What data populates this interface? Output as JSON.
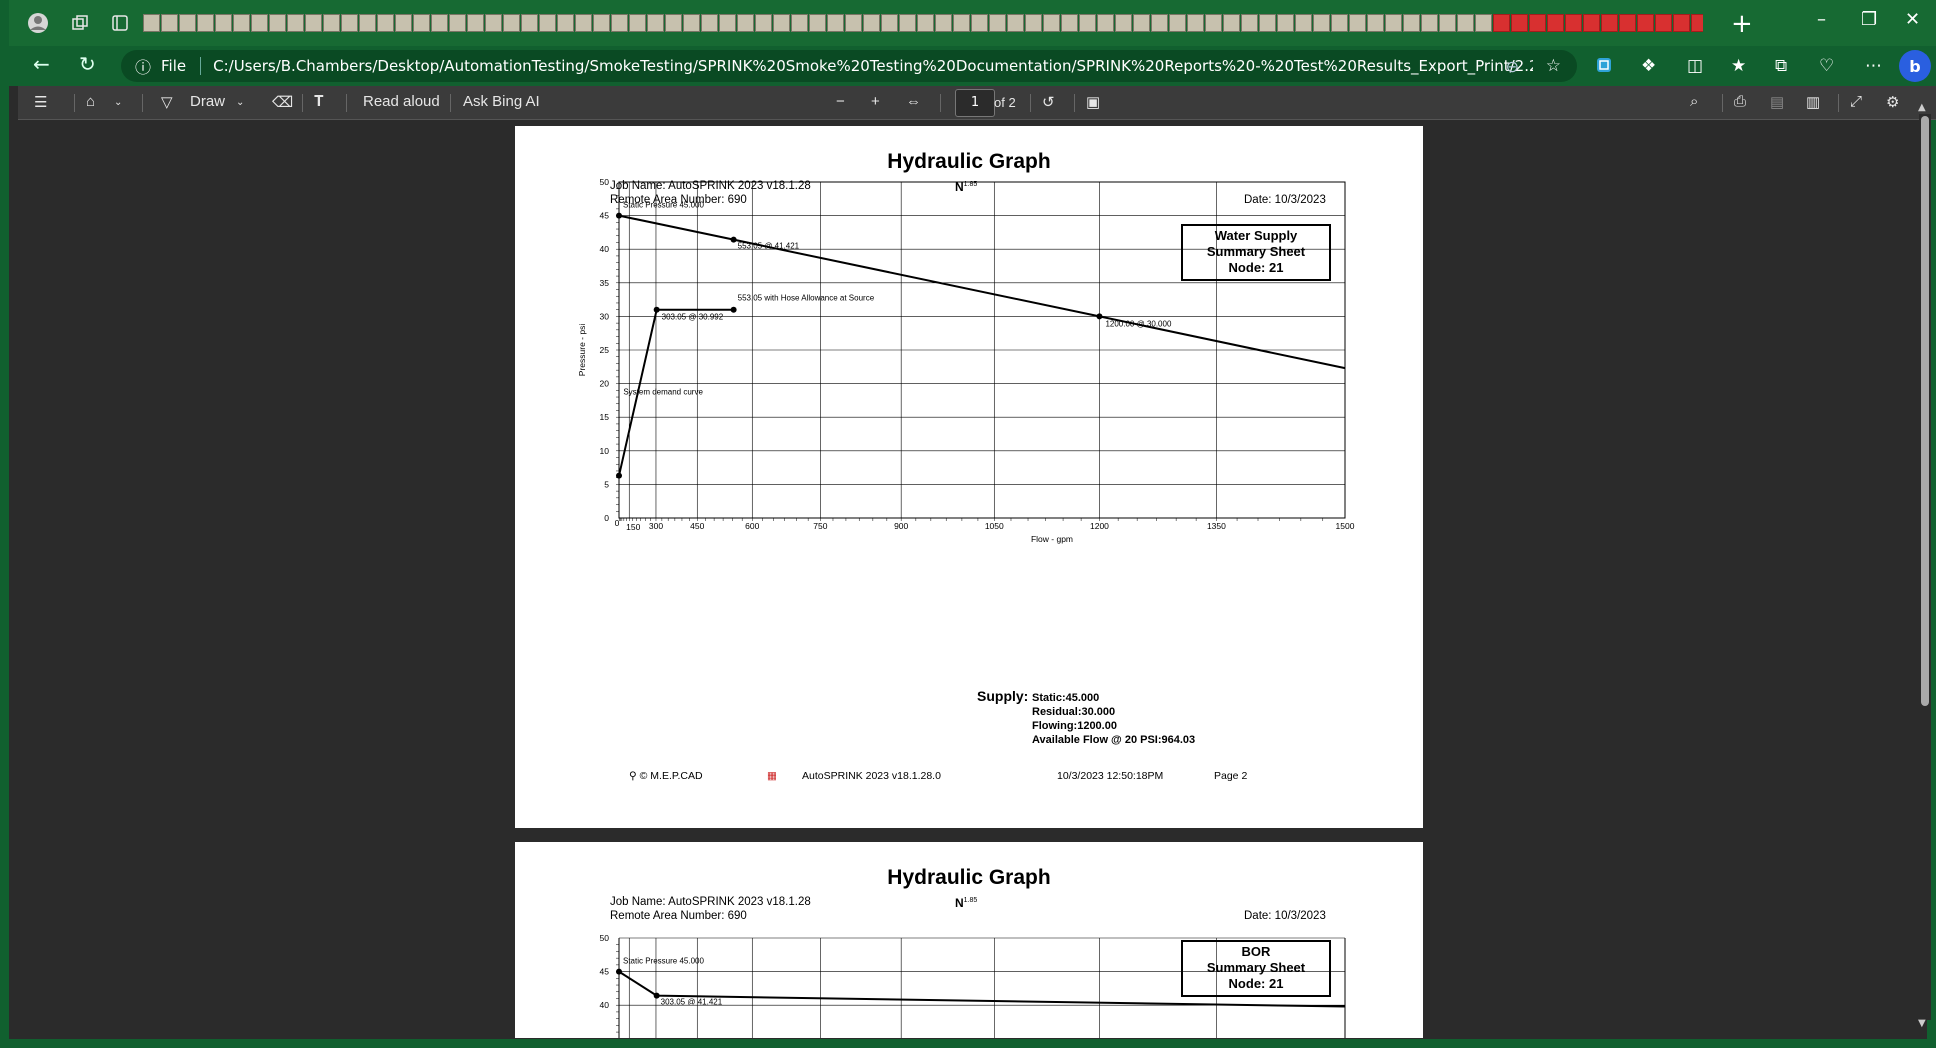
{
  "browser": {
    "address_file_label": "File",
    "url": "C:/Users/B.Chambers/Desktop/AutomationTesting/SmokeTesting/SPRINK%20Smoke%20Testing%20Documentation/SPRINK%20Reports%20-%20Test%20Results_Export_Print/2.2a%20NFPA%20-%20Print%20...",
    "tab_count_visual": 90,
    "pdf_tab_count_visual": 15
  },
  "pdf_toolbar": {
    "draw_label": "Draw",
    "read_aloud_label": "Read aloud",
    "ask_bing_label": "Ask Bing AI",
    "page_number": "1",
    "page_total": "of 2"
  },
  "page1": {
    "title": "Hydraulic Graph",
    "job_name": "Job Name: AutoSPRINK 2023 v18.1.28",
    "remote_area": "Remote Area Number: 690",
    "n_label": "N",
    "n_exp": "1.85",
    "date": "Date: 10/3/2023",
    "summary_box": [
      "Water Supply",
      "Summary Sheet",
      "Node: 21"
    ],
    "supply_label": "Supply:",
    "supply_values": [
      "Static:45.000",
      "Residual:30.000",
      "Flowing:1200.00",
      "Available Flow @ 20 PSI:964.03"
    ],
    "footer": {
      "copyright": "© M.E.P.CAD",
      "product": "AutoSPRINK 2023 v18.1.28.0",
      "timestamp": "10/3/2023  12:50:18PM",
      "page": "Page 2"
    }
  },
  "page2": {
    "title": "Hydraulic Graph",
    "job_name": "Job Name: AutoSPRINK 2023 v18.1.28",
    "remote_area": "Remote Area Number: 690",
    "n_label": "N",
    "n_exp": "1.85",
    "date": "Date: 10/3/2023",
    "summary_box": [
      "BOR",
      "Summary Sheet",
      "Node: 21"
    ]
  },
  "chart_data": [
    {
      "type": "line",
      "xlabel": "Flow - gpm",
      "ylabel": "Pressure - psi",
      "xlim": [
        0,
        1500
      ],
      "ylim": [
        0,
        50
      ],
      "x_ticks": [
        "0",
        "150",
        "300",
        "450",
        "600",
        "750",
        "900",
        "1050",
        "1200",
        "1350",
        "1500"
      ],
      "y_ticks": [
        "0",
        "5",
        "10",
        "15",
        "20",
        "25",
        "30",
        "35",
        "40",
        "45",
        "50"
      ],
      "grid": true,
      "scale": "N^1.85 (flow axis)",
      "series": [
        {
          "kind": "supply",
          "points": [
            [
              0,
              45
            ],
            [
              553.05,
              41.421
            ],
            [
              1200,
              30
            ],
            [
              1500,
              22.3
            ]
          ]
        },
        {
          "kind": "demand",
          "points": [
            [
              0,
              6.3
            ],
            [
              303.05,
              30.992
            ],
            [
              553.05,
              30.992
            ]
          ]
        }
      ],
      "annotations": [
        {
          "text": "Static Pressure 45.000",
          "x": 0,
          "y": 45
        },
        {
          "text": "553.05 @ 41.421",
          "x": 553.05,
          "y": 41.421
        },
        {
          "text": "553.05 with Hose Allowance at Source",
          "x": 553.05,
          "y": 30.992
        },
        {
          "text": "303.05 @ 30.992",
          "x": 303.05,
          "y": 30.992
        },
        {
          "text": "1200.00 @ 30.000",
          "x": 1200,
          "y": 30
        },
        {
          "text": "System demand curve",
          "x": 50,
          "y": 19
        }
      ]
    },
    {
      "type": "line",
      "y_ticks": [
        "50",
        "45",
        "40"
      ],
      "series": [
        {
          "kind": "supply",
          "points": [
            [
              0,
              45
            ],
            [
              303.05,
              41.421
            ],
            [
              1500,
              39.8
            ]
          ]
        }
      ],
      "annotations": [
        {
          "text": "Static Pressure 45.000",
          "x": 0,
          "y": 45
        },
        {
          "text": "303.05 @ 41.421",
          "x": 303.05,
          "y": 41.421
        }
      ]
    }
  ]
}
